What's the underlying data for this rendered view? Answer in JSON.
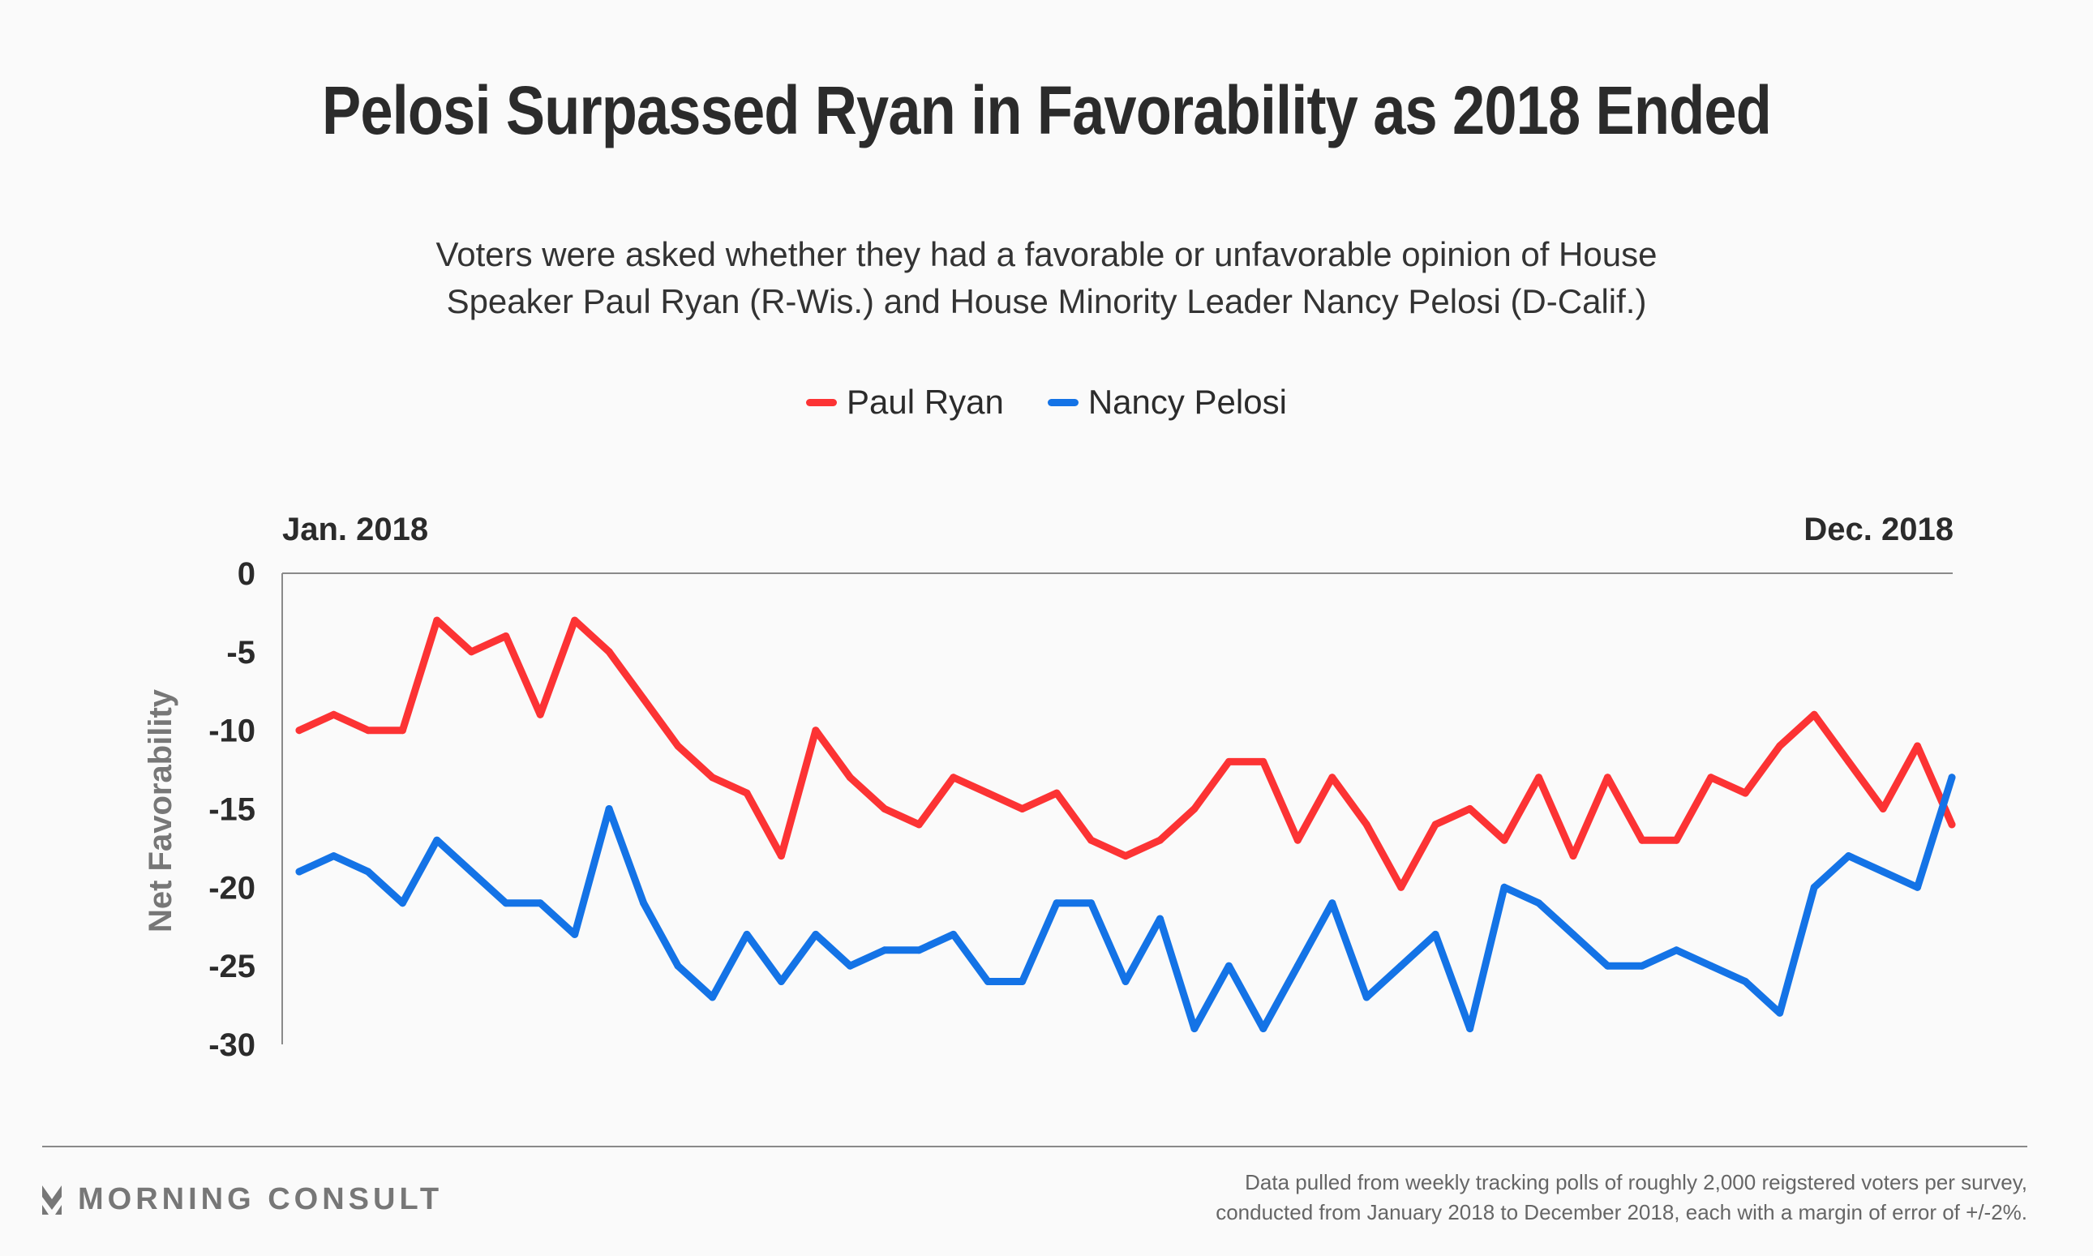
{
  "chart_data": {
    "type": "line",
    "title": "Pelosi Surpassed Ryan in Favorability as 2018 Ended",
    "subtitle": [
      "Voters were asked whether they had a favorable or unfavorable opinion of House",
      "Speaker Paul Ryan (R-Wis.) and House Minority Leader Nancy Pelosi (D-Calif.)"
    ],
    "xlabel": "",
    "ylabel": "Net Favorability",
    "x_start_label": "Jan. 2018",
    "x_end_label": "Dec. 2018",
    "ylim": [
      -30,
      0
    ],
    "yticks": [
      0,
      -5,
      -10,
      -15,
      -20,
      -25,
      -30
    ],
    "ytick_labels": [
      "0",
      "-5",
      "-10",
      "-15",
      "-20",
      "-25",
      "-30"
    ],
    "grid": false,
    "legend": "top-center",
    "x_points": 49,
    "series": [
      {
        "name": "Paul Ryan",
        "color": "#fc3334",
        "values": [
          -10,
          -9,
          -10,
          -10,
          -3,
          -5,
          -4,
          -9,
          -3,
          -5,
          -8,
          -11,
          -13,
          -14,
          -18,
          -10,
          -13,
          -15,
          -16,
          -13,
          -14,
          -15,
          -14,
          -17,
          -18,
          -17,
          -15,
          -12,
          -12,
          -17,
          -13,
          -16,
          -20,
          -16,
          -15,
          -17,
          -13,
          -18,
          -13,
          -17,
          -17,
          -13,
          -14,
          -11,
          -9,
          -12,
          -15,
          -11,
          -16
        ]
      },
      {
        "name": "Nancy Pelosi",
        "color": "#1473e6",
        "values": [
          -19,
          -18,
          -19,
          -21,
          -17,
          -19,
          -21,
          -21,
          -23,
          -15,
          -21,
          -25,
          -27,
          -23,
          -26,
          -23,
          -25,
          -24,
          -24,
          -23,
          -26,
          -26,
          -21,
          -21,
          -26,
          -22,
          -29,
          -25,
          -29,
          -25,
          -21,
          -27,
          -25,
          -23,
          -29,
          -20,
          -21,
          -23,
          -25,
          -25,
          -24,
          -25,
          -26,
          -28,
          -20,
          -18,
          -19,
          -20,
          -13
        ]
      }
    ]
  },
  "legend": {
    "items": [
      {
        "label": "Paul Ryan",
        "color": "#fc3334"
      },
      {
        "label": "Nancy Pelosi",
        "color": "#1473e6"
      }
    ]
  },
  "footer": {
    "brand": "MORNING CONSULT",
    "note_line1": "Data pulled from weekly tracking polls of roughly 2,000 reigstered voters per survey,",
    "note_line2": "conducted from January 2018 to December 2018, each with a margin of error of +/-2%."
  }
}
